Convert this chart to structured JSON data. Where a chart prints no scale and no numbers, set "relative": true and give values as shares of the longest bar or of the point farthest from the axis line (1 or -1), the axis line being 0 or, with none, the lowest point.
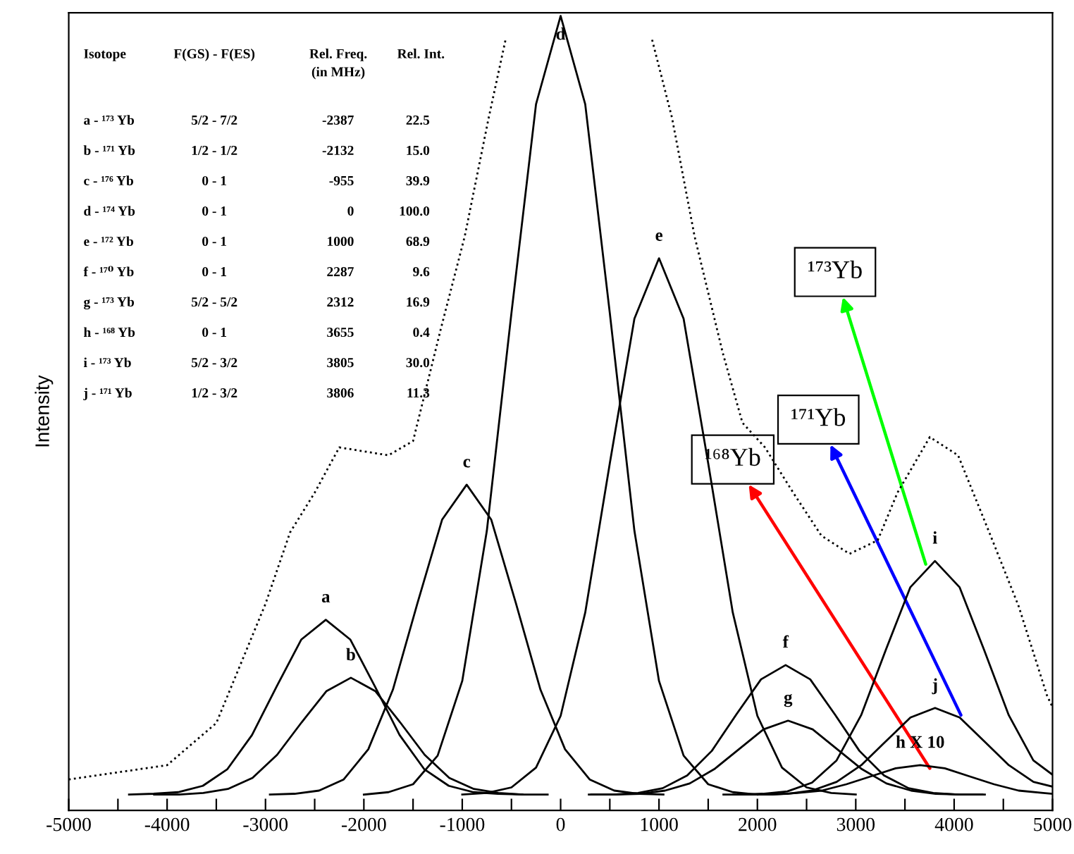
{
  "chart_data": {
    "type": "line",
    "ylabel": "Intensity",
    "relative": true,
    "xlim": [
      -5000,
      5000
    ],
    "xticks": [
      -5000,
      {
        "value": -4500,
        "label": null
      },
      -4000,
      {
        "value": -3500,
        "label": null
      },
      -3000,
      {
        "value": -2500,
        "label": null
      },
      -2000,
      {
        "value": -1500,
        "label": null
      },
      -1000,
      {
        "value": -500,
        "label": null
      },
      0,
      {
        "value": 500,
        "label": null
      },
      1000,
      {
        "value": 1500,
        "label": null
      },
      2000,
      {
        "value": 2500,
        "label": null
      },
      3000,
      {
        "value": 3500,
        "label": null
      },
      4000,
      {
        "value": 4500,
        "label": null
      },
      5000
    ],
    "tick_labels": "x",
    "grid": false,
    "legend": false,
    "series": [
      {
        "color": "#000000",
        "x": [
          -4387,
          -4137,
          -3887,
          -3637,
          -3387,
          -3137,
          -2887,
          -2637,
          -2387,
          -2137,
          -1887,
          -1637,
          -1387,
          -1137,
          -887,
          -637,
          -387
        ],
        "values": [
          0.02,
          0.021,
          0.023,
          0.031,
          0.052,
          0.095,
          0.156,
          0.215,
          0.24,
          0.215,
          0.156,
          0.095,
          0.052,
          0.031,
          0.023,
          0.021,
          0.02
        ]
      },
      {
        "color": "#000000",
        "x": [
          -4132,
          -3882,
          -3632,
          -3382,
          -3132,
          -2882,
          -2632,
          -2382,
          -2132,
          -1882,
          -1632,
          -1382,
          -1132,
          -882,
          -632,
          -382,
          -132
        ],
        "values": [
          0.02,
          0.02,
          0.022,
          0.027,
          0.041,
          0.07,
          0.111,
          0.15,
          0.167,
          0.15,
          0.111,
          0.07,
          0.041,
          0.027,
          0.022,
          0.02,
          0.02
        ]
      },
      {
        "color": "#000000",
        "x": [
          -2955,
          -2705,
          -2455,
          -2205,
          -1955,
          -1705,
          -1455,
          -1205,
          -955,
          -705,
          -455,
          -205,
          45,
          295,
          545,
          795,
          1045
        ],
        "values": [
          0.02,
          0.021,
          0.025,
          0.039,
          0.077,
          0.152,
          0.261,
          0.366,
          0.41,
          0.366,
          0.261,
          0.152,
          0.077,
          0.039,
          0.025,
          0.021,
          0.02
        ]
      },
      {
        "color": "#000000",
        "x": [
          -2000,
          -1750,
          -1500,
          -1250,
          -1000,
          -750,
          -500,
          -250,
          0,
          250,
          500,
          750,
          1000,
          1250,
          1500,
          1750,
          2000
        ],
        "values": [
          0.02,
          0.023,
          0.033,
          0.069,
          0.163,
          0.352,
          0.626,
          0.889,
          1.0,
          0.889,
          0.626,
          0.352,
          0.163,
          0.069,
          0.033,
          0.023,
          0.02
        ]
      },
      {
        "color": "#000000",
        "x": [
          -1000,
          -750,
          -500,
          -250,
          0,
          250,
          500,
          750,
          1000,
          1250,
          1500,
          1750,
          2000,
          2250,
          2500,
          2750,
          3000
        ],
        "values": [
          0.02,
          0.022,
          0.029,
          0.054,
          0.119,
          0.249,
          0.437,
          0.619,
          0.695,
          0.619,
          0.437,
          0.249,
          0.119,
          0.054,
          0.029,
          0.022,
          0.02
        ]
      },
      {
        "color": "#000000",
        "x": [
          287,
          537,
          787,
          1037,
          1287,
          1537,
          1787,
          2037,
          2287,
          2537,
          2787,
          3037,
          3287,
          3537,
          3787,
          4037,
          4287
        ],
        "values": [
          0.02,
          0.02,
          0.022,
          0.028,
          0.044,
          0.075,
          0.121,
          0.165,
          0.183,
          0.165,
          0.121,
          0.075,
          0.044,
          0.028,
          0.022,
          0.02,
          0.02
        ]
      },
      {
        "color": "#000000",
        "x": [
          312,
          562,
          812,
          1062,
          1312,
          1562,
          1812,
          2062,
          2312,
          2562,
          2812,
          3062,
          3312,
          3562,
          3812,
          4062,
          4312
        ],
        "values": [
          0.02,
          0.02,
          0.021,
          0.025,
          0.034,
          0.052,
          0.077,
          0.102,
          0.113,
          0.102,
          0.077,
          0.052,
          0.034,
          0.025,
          0.021,
          0.02,
          0.02
        ]
      },
      {
        "color": "#000000",
        "x": [
          1655,
          1905,
          2155,
          2405,
          2655,
          2905,
          3155,
          3405,
          3655,
          3905,
          4155,
          4405,
          4655,
          4905,
          5000
        ],
        "values": [
          0.02,
          0.02,
          0.02,
          0.022,
          0.025,
          0.033,
          0.043,
          0.053,
          0.057,
          0.053,
          0.043,
          0.033,
          0.025,
          0.022,
          0.021
        ]
      },
      {
        "color": "#000000",
        "x": [
          1805,
          2055,
          2305,
          2555,
          2805,
          3055,
          3305,
          3555,
          3805,
          4055,
          4305,
          4555,
          4805,
          5000
        ],
        "values": [
          0.02,
          0.021,
          0.024,
          0.035,
          0.063,
          0.12,
          0.202,
          0.281,
          0.314,
          0.281,
          0.202,
          0.12,
          0.063,
          0.045
        ]
      },
      {
        "color": "#000000",
        "x": [
          1806,
          2056,
          2306,
          2556,
          2806,
          3056,
          3306,
          3556,
          3806,
          4056,
          4306,
          4556,
          4806,
          5000
        ],
        "values": [
          0.02,
          0.02,
          0.021,
          0.025,
          0.036,
          0.057,
          0.087,
          0.117,
          0.129,
          0.117,
          0.087,
          0.057,
          0.036,
          0.03
        ]
      },
      {
        "color": "#000000",
        "line_style": "dotted",
        "x": [
          -5000,
          -4000,
          -3500,
          -3000,
          -2750,
          -2500,
          -2250,
          -2000,
          -1750,
          -1500,
          -1218,
          -974,
          -731,
          -560,
          0,
          930,
          1132,
          1361,
          1648,
          1848,
          2077,
          2364,
          2650,
          2937,
          3223,
          3424,
          3753,
          4040,
          4370,
          4656,
          4943,
          5000
        ],
        "values": [
          0.039,
          0.057,
          0.11,
          0.26,
          0.35,
          0.4,
          0.457,
          0.452,
          0.447,
          0.465,
          0.606,
          0.723,
          0.872,
          0.97,
          null,
          0.97,
          0.872,
          0.723,
          0.576,
          0.488,
          0.457,
          0.4,
          0.346,
          0.323,
          0.34,
          0.4,
          0.47,
          0.447,
          0.346,
          0.257,
          0.145,
          0.13
        ]
      }
    ],
    "annotations": [
      "Isotope",
      "F(GS) - F(ES)",
      "Rel. Freq.\n(in MHz)",
      "Rel. Int.",
      "a - ¹⁷³ Yb",
      "5/2 - 7/2",
      "-2387",
      "22.5",
      "b - ¹⁷¹ Yb",
      "1/2 - 1/2",
      "-2132",
      "15.0",
      "c - ¹⁷⁶ Yb",
      "0 - 1",
      "-955",
      "39.9",
      "d - ¹⁷⁴ Yb",
      "0 - 1",
      "0",
      "100.0",
      "e - ¹⁷² Yb",
      "0 - 1",
      "1000",
      "68.9",
      "f - ¹⁷⁰ Yb",
      "0 - 1",
      "2287",
      "9.6",
      "g - ¹⁷³ Yb",
      "5/2 - 5/2",
      "2312",
      "16.9",
      "h - ¹⁶⁸ Yb",
      "0 - 1",
      "3655",
      "0.4",
      "i - ¹⁷³ Yb",
      "5/2 - 3/2",
      "3805",
      "30.0",
      "j - ¹⁷¹ Yb",
      "1/2 - 3/2",
      "3806",
      "11.3",
      {
        "text": "a",
        "x": -2387,
        "y": 0.24
      },
      {
        "text": "b",
        "x": -2132,
        "y": 0.167
      },
      {
        "text": "c",
        "x": -955,
        "y": 0.41
      },
      {
        "text": "d",
        "x": 0,
        "y": 1.0
      },
      {
        "text": "e",
        "x": 1000,
        "y": 0.695
      },
      {
        "text": "f",
        "x": 2287,
        "y": 0.183
      },
      {
        "text": "g",
        "x": 2312,
        "y": 0.113
      },
      {
        "text": "h X 10",
        "x": 3655,
        "y": 0.057
      },
      {
        "text": "i",
        "x": 3805,
        "y": 0.314
      },
      {
        "text": "j",
        "x": 3806,
        "y": 0.129
      },
      {
        "text": "¹⁶⁸Yb",
        "x": 3753,
        "y": 0.053
      },
      {
        "text": "¹⁷¹Yb",
        "x": 4069,
        "y": 0.12
      },
      {
        "text": "¹⁷³Yb",
        "x": 3711,
        "y": 0.31
      }
    ]
  }
}
